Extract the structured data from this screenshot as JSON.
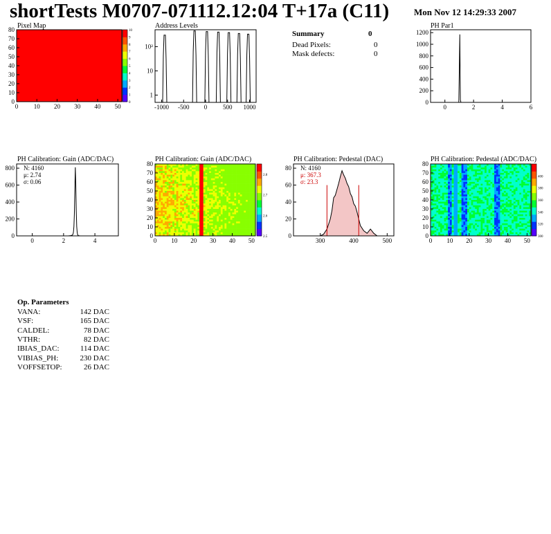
{
  "header": {
    "title": "shortTests M0707-071112.12:04 T+17a (C11)",
    "date": "Mon Nov 12 14:29:33 2007"
  },
  "summary": {
    "heading": "Summary",
    "heading_value": "0",
    "rows": [
      {
        "label": "Dead Pixels:",
        "value": "0"
      },
      {
        "label": "Mask defects:",
        "value": "0"
      }
    ]
  },
  "op_parameters": {
    "heading": "Op. Parameters",
    "rows": [
      {
        "label": "VANA:",
        "value": "142 DAC"
      },
      {
        "label": "VSF:",
        "value": "165 DAC"
      },
      {
        "label": "CALDEL:",
        "value": "78 DAC"
      },
      {
        "label": "VTHR:",
        "value": "82 DAC"
      },
      {
        "label": "IBIAS_DAC:",
        "value": "114 DAC"
      },
      {
        "label": "VIBIAS_PH:",
        "value": "230 DAC"
      },
      {
        "label": "VOFFSETOP:",
        "value": "26 DAC"
      }
    ]
  },
  "colors": {
    "line": "#000000",
    "stats_red": "#cc0000",
    "pixel_map_fill": "#ff0000",
    "palette": [
      "#5500ff",
      "#0033ff",
      "#00aaff",
      "#00ffcc",
      "#00ff33",
      "#88ff00",
      "#eeff00",
      "#ffaa00",
      "#ff5500",
      "#ff0000"
    ]
  },
  "chart_data": [
    {
      "id": "pixel-map",
      "type": "heatmap",
      "title": "Pixel Map",
      "xlim": [
        0,
        52
      ],
      "ylim": [
        0,
        80
      ],
      "xticks": [
        0,
        10,
        20,
        30,
        40,
        50
      ],
      "yticks": [
        0,
        10,
        20,
        30,
        40,
        50,
        60,
        70,
        80
      ],
      "uniform_value": 10,
      "zlim": [
        0,
        10
      ],
      "zticks": [
        0,
        1,
        2,
        3,
        4,
        5,
        6,
        7,
        8,
        9,
        10
      ]
    },
    {
      "id": "address-levels",
      "type": "bar",
      "title": "Address Levels",
      "log_y": true,
      "xlim": [
        -1150,
        1150
      ],
      "ylim": [
        0.5,
        500
      ],
      "xticks": [
        -1000,
        -500,
        0,
        500,
        1000
      ],
      "ytick_labels": [
        "1",
        "10",
        "10²"
      ],
      "ytick_values": [
        1,
        10,
        100
      ],
      "peaks": [
        {
          "x": -930,
          "value": 300
        },
        {
          "x": -250,
          "value": 450
        },
        {
          "x": 30,
          "value": 420
        },
        {
          "x": 290,
          "value": 400
        },
        {
          "x": 530,
          "value": 380
        },
        {
          "x": 760,
          "value": 350
        },
        {
          "x": 970,
          "value": 330
        }
      ]
    },
    {
      "id": "ph-par1",
      "type": "bar",
      "title": "PH Par1",
      "xlim": [
        -1,
        6
      ],
      "ylim": [
        0,
        1250
      ],
      "xticks": [
        0,
        2,
        4,
        6
      ],
      "yticks": [
        0,
        200,
        400,
        600,
        800,
        1000,
        1200
      ],
      "bins": [
        {
          "x": 0.97,
          "value": 0
        },
        {
          "x": 1.0,
          "value": 450
        },
        {
          "x": 1.04,
          "value": 1170
        },
        {
          "x": 1.08,
          "value": 40
        },
        {
          "x": 1.12,
          "value": 0
        }
      ]
    },
    {
      "id": "gain-1d",
      "type": "line",
      "title": "PH Calibration: Gain (ADC/DAC)",
      "xlim": [
        -1,
        5.5
      ],
      "ylim": [
        0,
        850
      ],
      "xticks": [
        0,
        2,
        4
      ],
      "yticks": [
        0,
        200,
        400,
        600,
        800
      ],
      "stats": {
        "n": "N: 4160",
        "mean": "μ: 2.74",
        "sigma": "σ: 0.06"
      },
      "x": [
        2.3,
        2.45,
        2.55,
        2.6,
        2.63,
        2.66,
        2.69,
        2.72,
        2.75,
        2.78,
        2.81,
        2.84,
        2.87,
        2.9,
        2.95,
        3.05
      ],
      "y": [
        0,
        3,
        8,
        20,
        45,
        110,
        260,
        550,
        810,
        600,
        300,
        110,
        40,
        12,
        3,
        0
      ]
    },
    {
      "id": "gain-2d",
      "type": "heatmap",
      "title": "PH Calibration: Gain (ADC/DAC)",
      "xlim": [
        0,
        52
      ],
      "ylim": [
        0,
        80
      ],
      "xticks": [
        0,
        10,
        20,
        30,
        40,
        50
      ],
      "yticks": [
        0,
        10,
        20,
        30,
        40,
        50,
        60,
        70,
        80
      ],
      "zlim": [
        2.5,
        2.85
      ],
      "zticks": [
        2.5,
        2.6,
        2.7,
        2.8
      ],
      "zlabels": [
        "2.5",
        "2.6",
        "2.7",
        "2.8"
      ],
      "dominant_band": "columns 23-24 high (red)"
    },
    {
      "id": "pedestal-1d",
      "type": "line",
      "title": "PH Calibration: Pedestal (DAC)",
      "xlim": [
        220,
        520
      ],
      "ylim": [
        0,
        85
      ],
      "xticks": [
        300,
        400,
        500
      ],
      "yticks": [
        0,
        20,
        40,
        60,
        80
      ],
      "stats": {
        "n": "N: 4160",
        "mean": "μ: 367.3",
        "sigma": "σ: 23.3"
      },
      "cut_lines": [
        320,
        415
      ],
      "x": [
        300,
        310,
        320,
        330,
        335,
        340,
        345,
        350,
        355,
        360,
        365,
        370,
        375,
        380,
        385,
        390,
        395,
        400,
        405,
        410,
        415,
        420,
        430,
        440,
        450,
        460,
        470
      ],
      "y": [
        0,
        2,
        8,
        20,
        30,
        45,
        48,
        55,
        62,
        70,
        77,
        72,
        68,
        62,
        58,
        50,
        46,
        38,
        35,
        28,
        20,
        12,
        6,
        3,
        8,
        3,
        0
      ]
    },
    {
      "id": "pedestal-2d",
      "type": "heatmap",
      "title": "PH Calibration: Pedestal (ADC/DAC)",
      "xlim": [
        0,
        52
      ],
      "ylim": [
        0,
        80
      ],
      "xticks": [
        0,
        10,
        20,
        30,
        40,
        50
      ],
      "yticks": [
        0,
        10,
        20,
        30,
        40,
        50,
        60,
        70,
        80
      ],
      "zlim": [
        300,
        420
      ],
      "zticks": [
        300,
        320,
        340,
        360,
        380,
        400
      ],
      "zlabels": [
        "300",
        "320",
        "340",
        "360",
        "380",
        "400"
      ],
      "dominant_band": "columns 9-10, 16-18, 33-35 low (blue)"
    }
  ]
}
